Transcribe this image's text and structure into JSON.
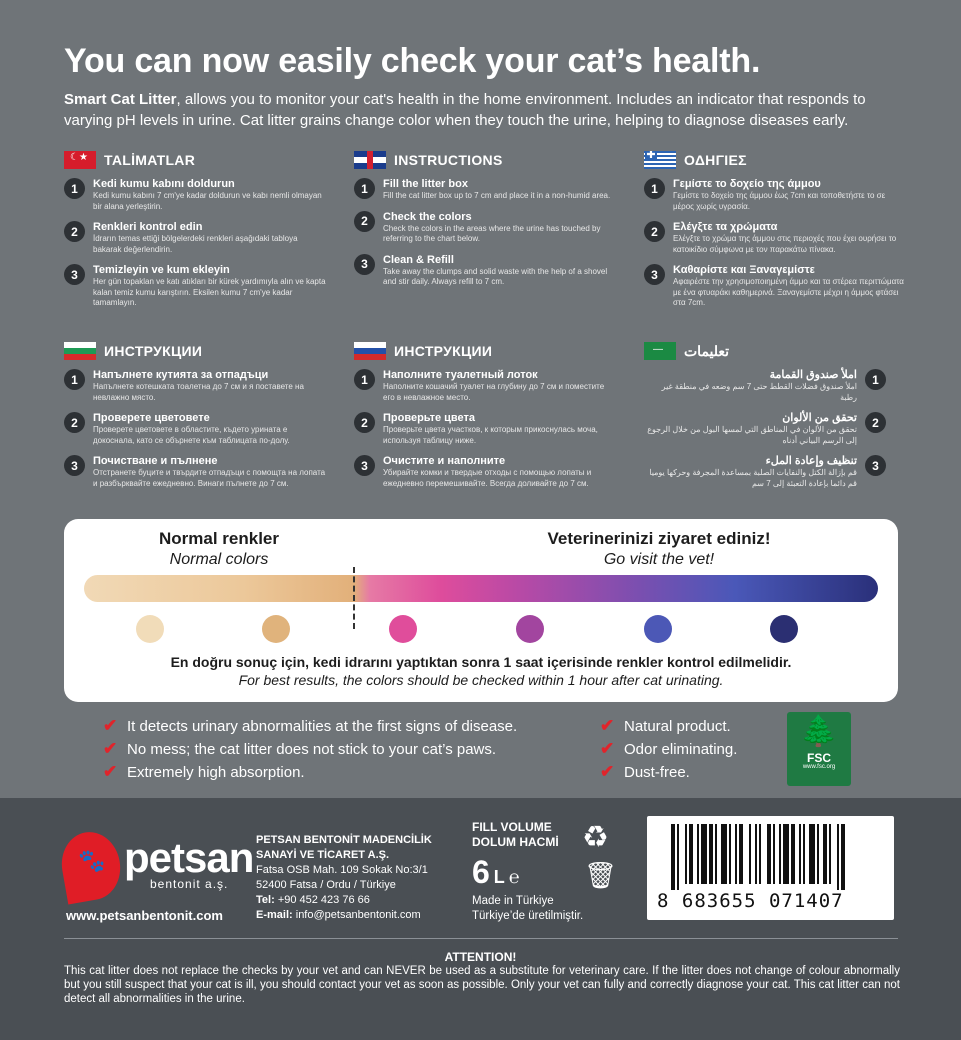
{
  "headline": "You can now easily check your cat’s health.",
  "intro_bold": "Smart Cat Litter",
  "intro_rest": ", allows you to monitor your cat's health in the home environment. Includes an indicator that responds to varying pH levels in urine. Cat litter grains change color when they touch the urine, helping to diagnose diseases early.",
  "languages": [
    {
      "title": "TALİMATLAR",
      "flag": "tr-flag-icon",
      "steps": [
        {
          "n": "1",
          "title": "Kedi kumu kabını doldurun",
          "desc": "Kedi kumu kabını 7 cm'ye kadar doldurun ve kabı nemli olmayan bir alana yerleştirin."
        },
        {
          "n": "2",
          "title": "Renkleri kontrol edin",
          "desc": "İdrarın temas ettiği bölgelerdeki renkleri aşağıdaki tabloya bakarak değerlendirin."
        },
        {
          "n": "3",
          "title": "Temizleyin ve kum ekleyin",
          "desc": "Her gün topaklan ve katı atıkları bir kürek yardımıyla alın ve kapta kalan temiz kumu karıştırın. Eksilen kumu 7 cm'ye kadar tamamlayın."
        }
      ]
    },
    {
      "title": "INSTRUCTIONS",
      "flag": "uk-flag-icon",
      "steps": [
        {
          "n": "1",
          "title": "Fill the litter box",
          "desc": "Fill the cat litter box up to 7 cm and place it in a non-humid area."
        },
        {
          "n": "2",
          "title": "Check the colors",
          "desc": "Check the colors in the areas where the urine has touched by referring to the chart below."
        },
        {
          "n": "3",
          "title": "Clean & Refill",
          "desc": "Take away the clumps and solid waste with the help of a shovel and stir daily. Always refill to 7 cm."
        }
      ]
    },
    {
      "title": "ΟΔΗΓΙΕΣ",
      "flag": "gr-flag-icon",
      "steps": [
        {
          "n": "1",
          "title": "Γεμίστε το δοχείο της άμμου",
          "desc": "Γεμίστε το δοχείο της άμμου έως 7cm και τοποθετήστε το σε μέρος χωρίς υγρασία."
        },
        {
          "n": "2",
          "title": "Ελέγξτε τα χρώματα",
          "desc": "Ελέγξτε το χρώμα της άμμου στις περιοχές που έχει ουρήσει το κατοικίδιο σύμφωνα με τον παρακάτω πίνακα."
        },
        {
          "n": "3",
          "title": "Καθαρίστε και Ξαναγεμίστε",
          "desc": "Αφαιρέστε την χρησιμοποιημένη άμμο και τα στέρεα περιττώματα με ένα φτυαράκι καθημερινά. Ξαναγεμίστε μέχρι η άμμος φτάσει στα 7cm."
        }
      ]
    },
    {
      "title": "ИНСТРУКЦИИ",
      "flag": "bg-flag-icon",
      "steps": [
        {
          "n": "1",
          "title": "Напълнете кутията за отпадъци",
          "desc": "Напълнете котешката тоалетна до 7 см и я поставете на невлажно място."
        },
        {
          "n": "2",
          "title": "Проверете цветовете",
          "desc": "Проверете цветовете в областите, където урината е докоснала, като се обърнете към таблицата по-долу."
        },
        {
          "n": "3",
          "title": "Почистване и пълнене",
          "desc": "Отстранете буците и твърдите отпадъци с помощта на лопата и разбърквайте ежедневно. Винаги пълнете до 7 см."
        }
      ]
    },
    {
      "title": "ИНСТРУКЦИИ",
      "flag": "ru-flag-icon",
      "steps": [
        {
          "n": "1",
          "title": "Наполните туалетный лоток",
          "desc": "Наполните кошачий туалет на глубину до 7 см и поместите его в невлажное место."
        },
        {
          "n": "2",
          "title": "Проверьте цвета",
          "desc": "Проверьте цвета участков, к которым прикоснулась моча, используя таблицу ниже."
        },
        {
          "n": "3",
          "title": "Очистите и наполните",
          "desc": "Убирайте комки и твердые отходы с помощью лопаты и ежедневно перемешивайте. Всегда доливайте до 7 см."
        }
      ]
    },
    {
      "title": "تعليمات",
      "flag": "sa-flag-icon",
      "steps": [
        {
          "n": "1",
          "title": "املأ صندوق القمامة",
          "desc": "املأ صندوق فضلات القطط حتى 7 سم وضعه في منطقة غير رطبة"
        },
        {
          "n": "2",
          "title": "تحقق من الألوان",
          "desc": "تحقق من الألوان في المناطق التي لمسها البول من خلال الرجوع إلى الرسم البياني أدناه"
        },
        {
          "n": "3",
          "title": "تنظيف وإعادة الملء",
          "desc": "قم بإزالة الكتل والنفايات الصلبة بمساعدة المجرفة وحركها يوميا قم دائما بإعادة التعبئة إلى 7 سم"
        }
      ]
    }
  ],
  "chart": {
    "normal_tr": "Normal renkler",
    "normal_en": "Normal colors",
    "vet_tr": "Veterinerinizi ziyaret ediniz!",
    "vet_en": "Go visit the vet!",
    "dot_colors": [
      "#f1dcb9",
      "#e0b37c",
      "#e04d9b",
      "#a2459f",
      "#4c58b6",
      "#2b2f72"
    ],
    "note_tr": "En doğru sonuç için, kedi idrarını yaptıktan sonra 1 saat içerisinde renkler kontrol edilmelidir.",
    "note_en": "For best results, the colors should be checked within 1 hour after cat urinating."
  },
  "features_left": [
    "It detects urinary abnormalities at the first signs of disease.",
    "No mess; the cat litter does not stick to your cat’s paws.",
    "Extremely high absorption."
  ],
  "features_right": [
    "Natural product.",
    "Odor eliminating.",
    "Dust-free."
  ],
  "fsc": {
    "label": "FSC",
    "url": "www.fsc.org"
  },
  "brand": {
    "name": "petsan",
    "sub": "bentonit a.ş.",
    "website": "www.petsanbentonit.com"
  },
  "company": {
    "line1": "PETSAN BENTONİT MADENCİLİK",
    "line2": "SANAYİ VE TİCARET A.Ş.",
    "line3": "Fatsa OSB Mah. 109 Sokak No:3/1",
    "line4": "52400 Fatsa / Ordu / Türkiye",
    "tel_label": "Tel:",
    "tel": "+90 452 423 76 66",
    "email_label": "E-mail:",
    "email": "info@petsanbentonit.com"
  },
  "volume": {
    "label1": "FILL VOLUME",
    "label2": "DOLUM HACMİ",
    "value": "6",
    "unit": "L",
    "e_mark": "℮",
    "made1": "Made in Türkiye",
    "made2": "Türkiye’de üretilmiştir."
  },
  "barcode": "8   683655   071407",
  "attention": {
    "title": "ATTENTION!",
    "text": "This cat litter does not replace the checks by your vet and can NEVER be used as a substitute for veterinary care. If the litter does not change of colour abnormally but you still suspect that your cat is ill, you should contact your vet as soon as possible. Only your vet can fully and correctly diagnose your cat. This cat litter can not detect all abnormalities in the urine."
  }
}
